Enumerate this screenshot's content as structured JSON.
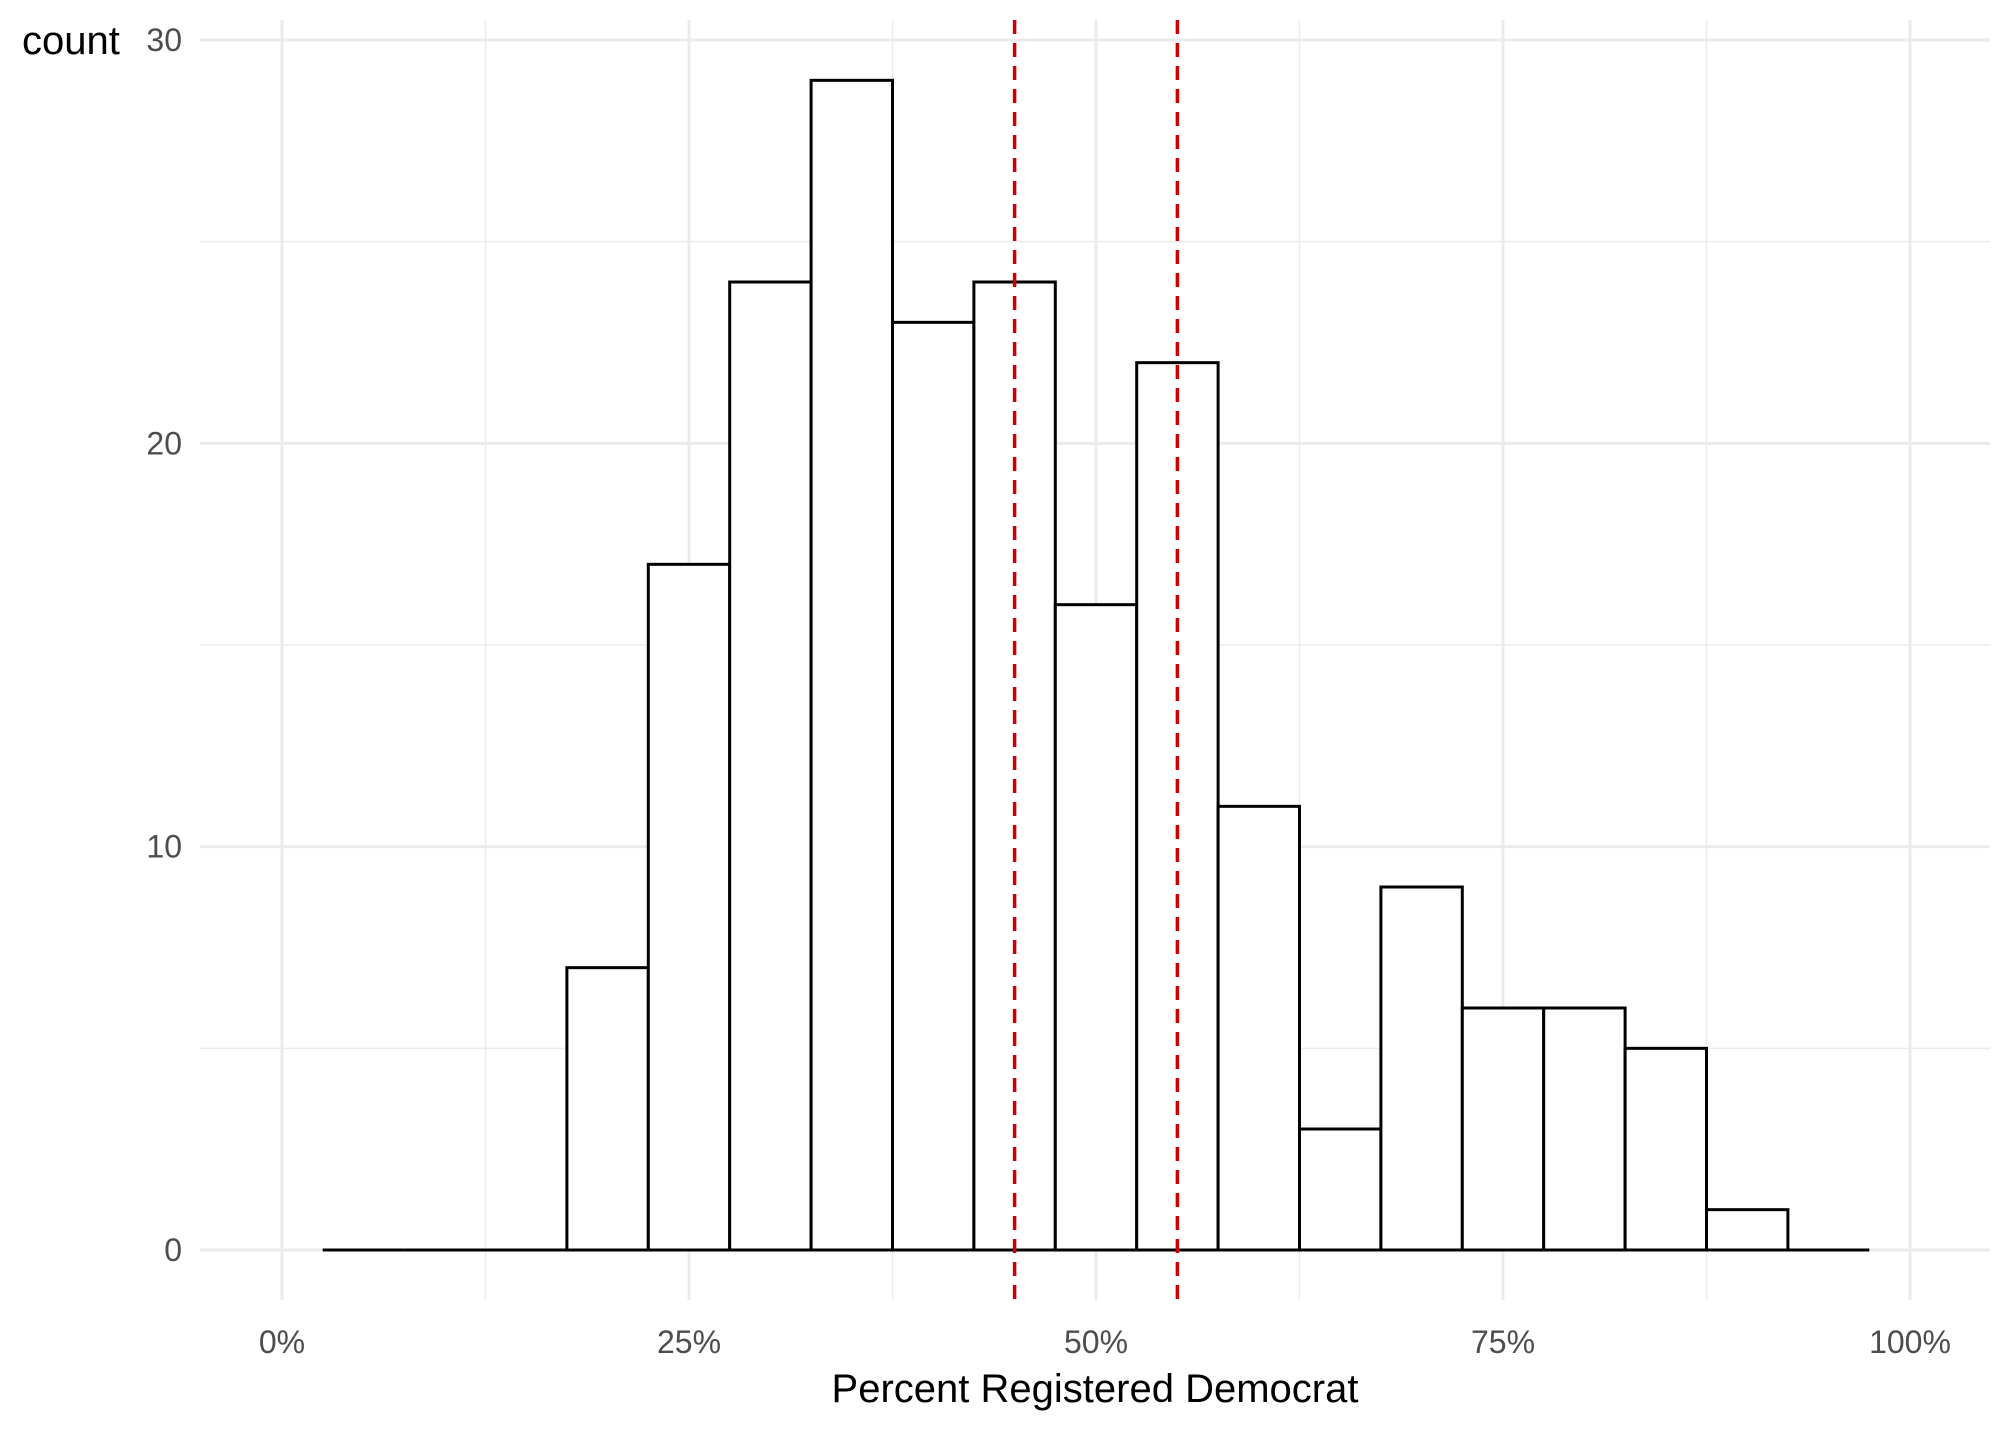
{
  "chart_data": {
    "type": "bar",
    "subtype": "histogram",
    "xlabel": "Percent Registered Democrat",
    "ylabel": "count",
    "xlim": [
      -0.05,
      1.05
    ],
    "ylim": [
      -1.2,
      30.5
    ],
    "x_ticks": [
      {
        "value": 0.0,
        "label": "0%"
      },
      {
        "value": 0.25,
        "label": "25%"
      },
      {
        "value": 0.5,
        "label": "50%"
      },
      {
        "value": 0.75,
        "label": "75%"
      },
      {
        "value": 1.0,
        "label": "100%"
      }
    ],
    "y_ticks": [
      {
        "value": 0,
        "label": "0"
      },
      {
        "value": 10,
        "label": "10"
      },
      {
        "value": 20,
        "label": "20"
      },
      {
        "value": 30,
        "label": "30"
      }
    ],
    "grid": true,
    "bins": [
      {
        "start": 0.025,
        "end": 0.075,
        "count": 0
      },
      {
        "start": 0.075,
        "end": 0.125,
        "count": 0
      },
      {
        "start": 0.125,
        "end": 0.175,
        "count": 0
      },
      {
        "start": 0.175,
        "end": 0.225,
        "count": 7
      },
      {
        "start": 0.225,
        "end": 0.275,
        "count": 17
      },
      {
        "start": 0.275,
        "end": 0.325,
        "count": 24
      },
      {
        "start": 0.325,
        "end": 0.375,
        "count": 29
      },
      {
        "start": 0.375,
        "end": 0.425,
        "count": 23
      },
      {
        "start": 0.425,
        "end": 0.475,
        "count": 24
      },
      {
        "start": 0.475,
        "end": 0.525,
        "count": 16
      },
      {
        "start": 0.525,
        "end": 0.575,
        "count": 22
      },
      {
        "start": 0.575,
        "end": 0.625,
        "count": 11
      },
      {
        "start": 0.625,
        "end": 0.675,
        "count": 3
      },
      {
        "start": 0.675,
        "end": 0.725,
        "count": 9
      },
      {
        "start": 0.725,
        "end": 0.775,
        "count": 6
      },
      {
        "start": 0.775,
        "end": 0.825,
        "count": 6
      },
      {
        "start": 0.825,
        "end": 0.875,
        "count": 5
      },
      {
        "start": 0.875,
        "end": 0.925,
        "count": 1
      },
      {
        "start": 0.925,
        "end": 0.975,
        "count": 0
      }
    ],
    "reference_lines": [
      0.45,
      0.55
    ],
    "colors": {
      "bar_fill": "#ffffff",
      "bar_outline": "#000000",
      "reference_line": "#cc0000",
      "grid": "#ebebeb",
      "tick_text": "#4d4d4d"
    }
  }
}
